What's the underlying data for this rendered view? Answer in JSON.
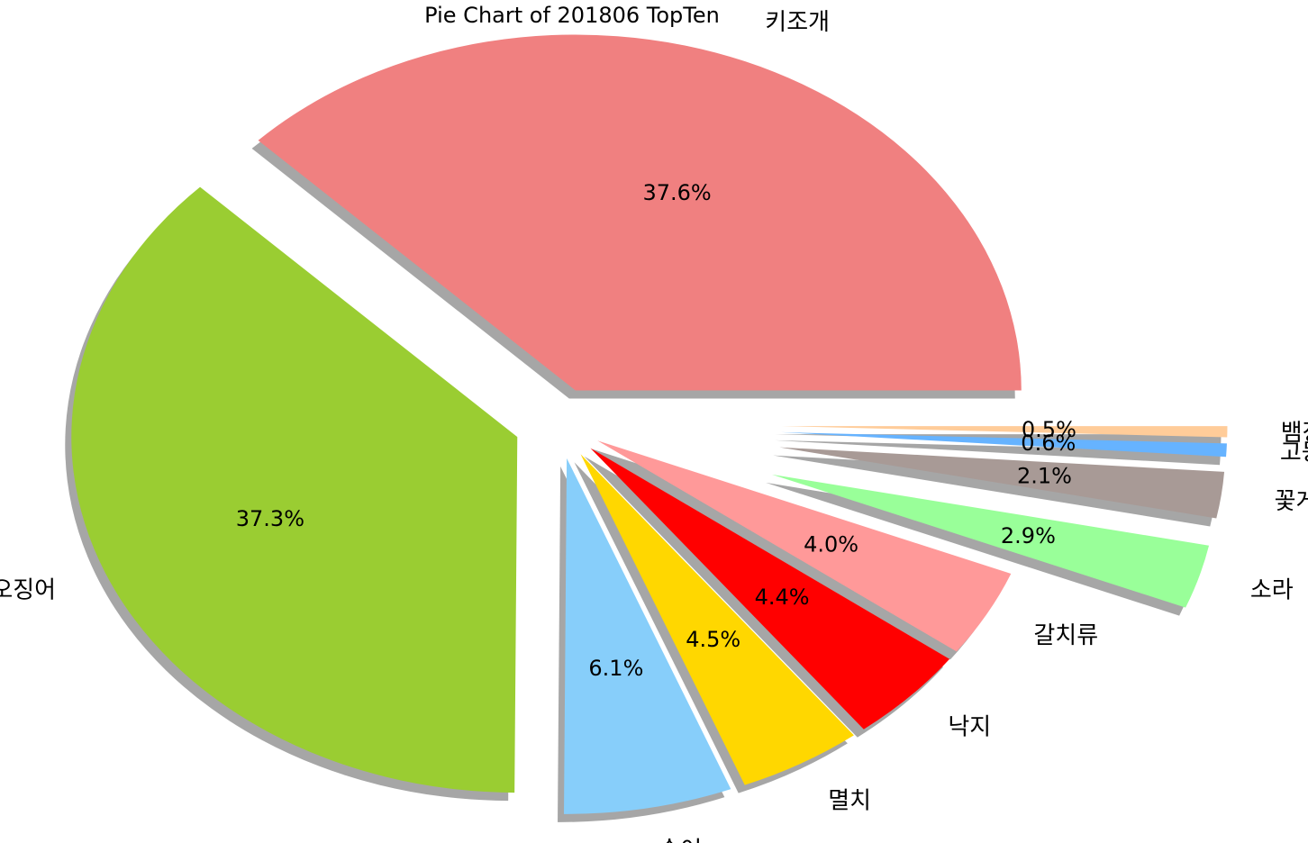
{
  "chart_data": {
    "type": "pie",
    "title": "Pie Chart of 201806 TopTen",
    "start_angle_deg": 0,
    "direction": "counterclockwise",
    "shadow": true,
    "slices": [
      {
        "label": "키조개",
        "value": 37.6,
        "pct_label": "37.6%",
        "color": "#F08080",
        "explode": 0.1
      },
      {
        "label": "살오징어",
        "value": 37.3,
        "pct_label": "37.3%",
        "color": "#9ACD32",
        "explode": 0.1
      },
      {
        "label": "숭어",
        "value": 6.1,
        "pct_label": "6.1%",
        "color": "#87CEFA",
        "explode": 0.1
      },
      {
        "label": "멸치",
        "value": 4.5,
        "pct_label": "4.5%",
        "color": "#FFD700",
        "explode": 0.1
      },
      {
        "label": "낙지",
        "value": 4.4,
        "pct_label": "4.4%",
        "color": "#FF0000",
        "explode": 0.1
      },
      {
        "label": "갈치류",
        "value": 4.0,
        "pct_label": "4.0%",
        "color": "#FF9999",
        "explode": 0.1
      },
      {
        "label": "소라",
        "value": 2.9,
        "pct_label": "2.9%",
        "color": "#99FF99",
        "explode": 0.5
      },
      {
        "label": "꽃게",
        "value": 2.1,
        "pct_label": "2.1%",
        "color": "#A89A96",
        "explode": 0.5
      },
      {
        "label": "고등어",
        "value": 0.6,
        "pct_label": "0.6%",
        "color": "#66B3FF",
        "explode": 0.5
      },
      {
        "label": "뱀장어",
        "value": 0.5,
        "pct_label": "0.5%",
        "color": "#FFCC99",
        "explode": 0.5
      }
    ]
  }
}
